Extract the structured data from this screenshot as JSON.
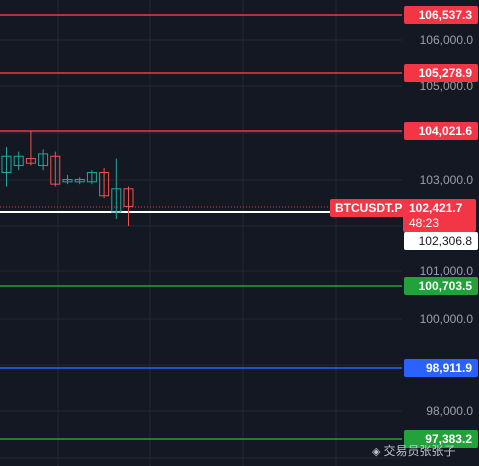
{
  "symbol": "BTCUSDT.P",
  "current_price": "102,421.7",
  "countdown": "48:23",
  "price_axis": {
    "ticks": [
      "106,000.0",
      "105,000.0",
      "103,000.0",
      "101,000.0",
      "100,000.0",
      "98,000.0"
    ]
  },
  "levels": [
    {
      "label": "106,537.3",
      "kind": "resistance",
      "color": "#f23645"
    },
    {
      "label": "105,278.9",
      "kind": "resistance",
      "color": "#f23645"
    },
    {
      "label": "104,021.6",
      "kind": "resistance",
      "color": "#f23645"
    },
    {
      "label": "102,306.8",
      "kind": "pivot",
      "color": "#ffffff"
    },
    {
      "label": "100,703.5",
      "kind": "support",
      "color": "#23a13a"
    },
    {
      "label": "98,911.9",
      "kind": "support",
      "color": "#2962ff"
    },
    {
      "label": "97,383.2",
      "kind": "support",
      "color": "#23a13a"
    }
  ],
  "watermark": "交易员张张子",
  "chart_data": {
    "type": "candlestick",
    "up_color": "#26a69a",
    "down_color": "#ef5350",
    "ylim": [
      97200,
      106900
    ],
    "candles": [
      {
        "o": 103150,
        "h": 103700,
        "l": 102850,
        "c": 103500
      },
      {
        "o": 103300,
        "h": 103600,
        "l": 103200,
        "c": 103500
      },
      {
        "o": 103450,
        "h": 104050,
        "l": 103300,
        "c": 103350
      },
      {
        "o": 103300,
        "h": 103650,
        "l": 103200,
        "c": 103550
      },
      {
        "o": 103500,
        "h": 103600,
        "l": 102850,
        "c": 102900
      },
      {
        "o": 102950,
        "h": 103100,
        "l": 102900,
        "c": 103000
      },
      {
        "o": 102950,
        "h": 103050,
        "l": 102900,
        "c": 103000
      },
      {
        "o": 102950,
        "h": 103200,
        "l": 102900,
        "c": 103150
      },
      {
        "o": 103150,
        "h": 103250,
        "l": 102600,
        "c": 102650
      },
      {
        "o": 102300,
        "h": 103450,
        "l": 102150,
        "c": 102800
      },
      {
        "o": 102800,
        "h": 102850,
        "l": 102000,
        "c": 102421.7
      }
    ]
  }
}
